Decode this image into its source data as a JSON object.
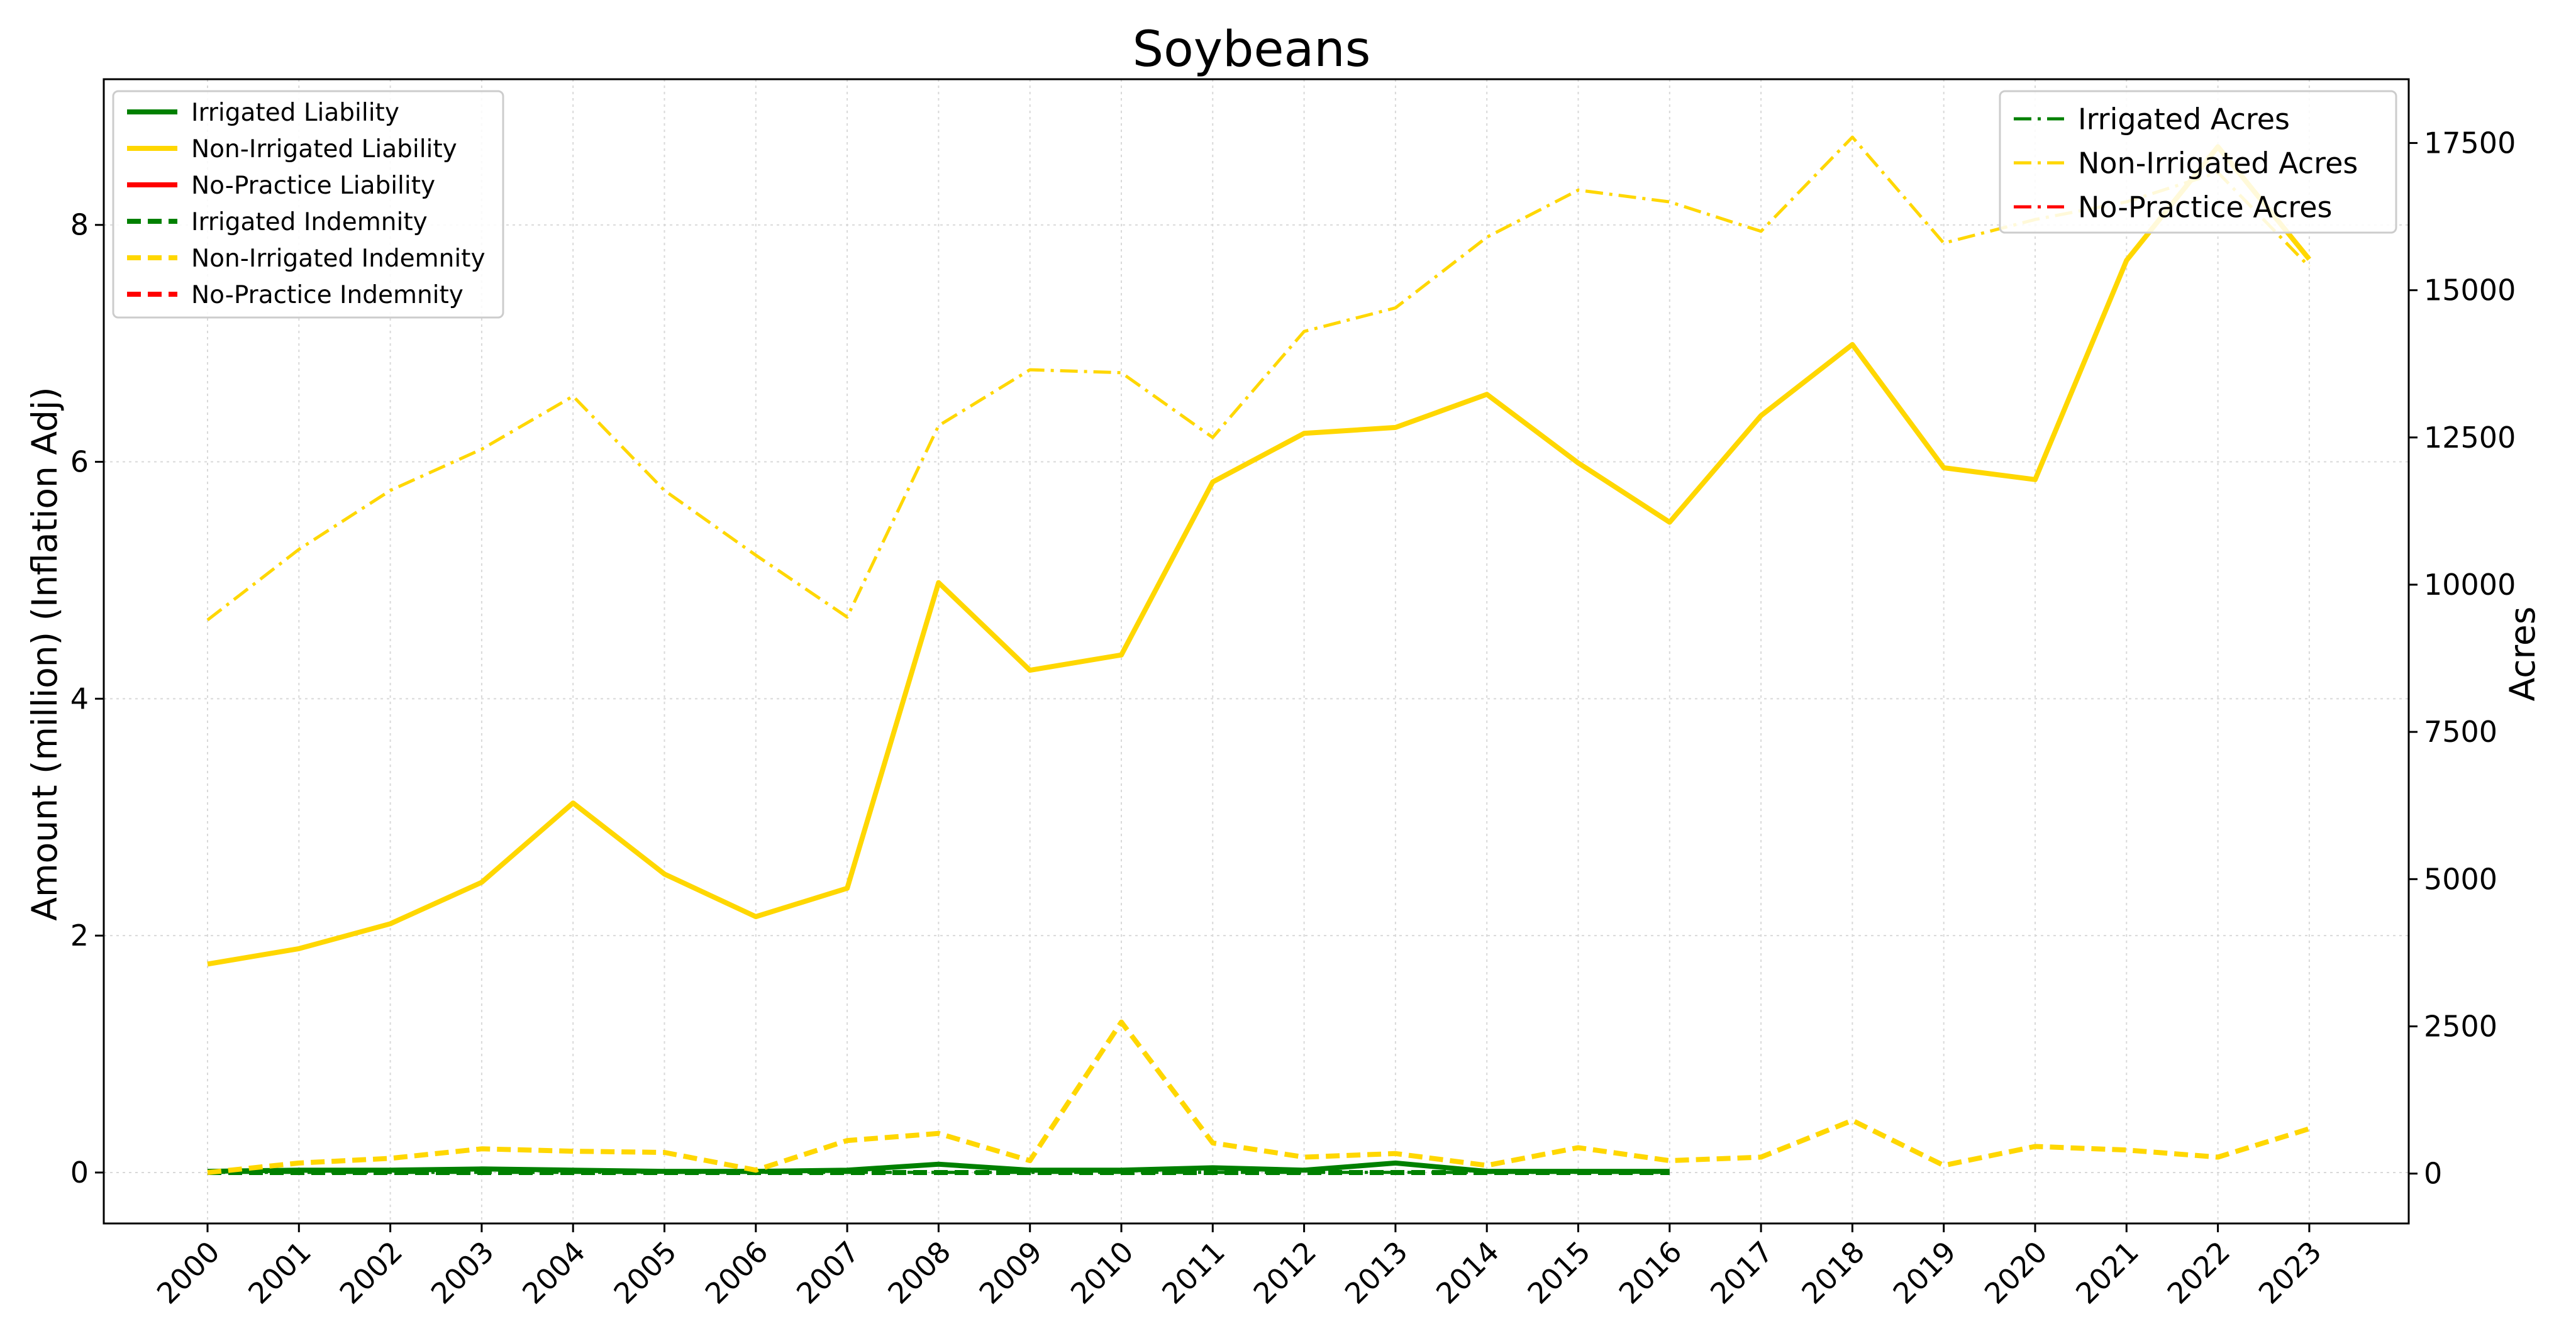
{
  "chart_data": {
    "type": "line",
    "title": "Soybeans",
    "ylabel_left": "Amount (million) (Inflation Adj)",
    "ylabel_right": "Acres",
    "x": [
      2000,
      2001,
      2002,
      2003,
      2004,
      2005,
      2006,
      2007,
      2008,
      2009,
      2010,
      2011,
      2012,
      2013,
      2014,
      2015,
      2016,
      2017,
      2018,
      2019,
      2020,
      2021,
      2022,
      2023
    ],
    "x_tick_labels": [
      "2000",
      "2001",
      "2002",
      "2003",
      "2004",
      "2005",
      "2006",
      "2007",
      "2008",
      "2009",
      "2010",
      "2011",
      "2012",
      "2013",
      "2014",
      "2015",
      "2016",
      "2017",
      "2018",
      "2019",
      "2020",
      "2021",
      "2022",
      "2023"
    ],
    "ylim_left": [
      -0.43,
      9.23
    ],
    "ylim_right": [
      -847,
      18583
    ],
    "yticks_left": [
      0,
      2,
      4,
      6,
      8
    ],
    "yticks_right": [
      0,
      2500,
      5000,
      7500,
      10000,
      12500,
      15000,
      17500
    ],
    "grid": true,
    "legend_left": {
      "placement": "upper left",
      "entries": [
        "Irrigated Liability",
        "Non-Irrigated Liability",
        "No-Practice Liability",
        "Irrigated Indemnity",
        "Non-Irrigated Indemnity",
        "No-Practice Indemnity"
      ]
    },
    "legend_right": {
      "placement": "upper right",
      "entries": [
        "Irrigated Acres",
        "Non-Irrigated Acres",
        "No-Practice Acres"
      ]
    },
    "colors": {
      "irrigated": "#008000",
      "non_irrigated": "#FFD700",
      "no_practice": "#FF0000"
    },
    "series_left": [
      {
        "name": "Irrigated Liability",
        "color": "#008000",
        "style": "solid",
        "x": [
          2000,
          2001,
          2002,
          2003,
          2004,
          2005,
          2006,
          2007,
          2008,
          2009,
          2010,
          2011,
          2012,
          2013,
          2014,
          2015,
          2016
        ],
        "values": [
          0.01,
          0.02,
          0.02,
          0.03,
          0.02,
          0.01,
          0.01,
          0.02,
          0.07,
          0.02,
          0.02,
          0.04,
          0.02,
          0.08,
          0.01,
          0.01,
          0.01
        ]
      },
      {
        "name": "Non-Irrigated Liability",
        "color": "#FFD700",
        "style": "solid",
        "x": [
          2000,
          2001,
          2002,
          2003,
          2004,
          2005,
          2006,
          2007,
          2008,
          2009,
          2010,
          2011,
          2012,
          2013,
          2014,
          2015,
          2016,
          2017,
          2018,
          2019,
          2020,
          2021,
          2022,
          2023
        ],
        "values": [
          1.76,
          1.89,
          2.1,
          2.45,
          3.12,
          2.52,
          2.16,
          2.4,
          4.98,
          4.24,
          4.37,
          5.83,
          6.24,
          6.29,
          6.57,
          5.99,
          5.49,
          6.39,
          6.99,
          5.95,
          5.85,
          7.7,
          8.66,
          7.71
        ]
      },
      {
        "name": "Irrigated Indemnity",
        "color": "#008000",
        "style": "dashed",
        "x": [
          2000,
          2001,
          2002,
          2003,
          2004,
          2005,
          2006,
          2007,
          2008,
          2009,
          2010,
          2011,
          2012,
          2013,
          2014,
          2015,
          2016
        ],
        "values": [
          0.0,
          0.0,
          0.0,
          0.0,
          0.0,
          0.0,
          0.0,
          0.0,
          0.0,
          0.0,
          0.0,
          0.0,
          0.0,
          0.0,
          0.0,
          0.0,
          0.0
        ]
      },
      {
        "name": "Non-Irrigated Indemnity",
        "color": "#FFD700",
        "style": "dashed",
        "x": [
          2000,
          2001,
          2002,
          2003,
          2004,
          2005,
          2006,
          2007,
          2008,
          2009,
          2010,
          2011,
          2012,
          2013,
          2014,
          2015,
          2016,
          2017,
          2018,
          2019,
          2020,
          2021,
          2022,
          2023
        ],
        "values": [
          0.0,
          0.08,
          0.12,
          0.2,
          0.18,
          0.17,
          0.02,
          0.27,
          0.33,
          0.1,
          1.27,
          0.25,
          0.13,
          0.16,
          0.06,
          0.21,
          0.1,
          0.13,
          0.44,
          0.06,
          0.22,
          0.19,
          0.13,
          0.37
        ]
      }
    ],
    "series_right": [
      {
        "name": "Irrigated Acres",
        "color": "#008000",
        "style": "dashdot",
        "x": [
          2000,
          2001,
          2002,
          2003,
          2004,
          2005,
          2006,
          2007,
          2008,
          2009,
          2010,
          2011,
          2012,
          2013,
          2014,
          2015,
          2016
        ],
        "values": [
          20,
          20,
          20,
          20,
          20,
          20,
          20,
          20,
          20,
          20,
          20,
          20,
          20,
          20,
          20,
          20,
          20
        ]
      },
      {
        "name": "Non-Irrigated Acres",
        "color": "#FFD700",
        "style": "dashdot",
        "x": [
          2000,
          2001,
          2002,
          2003,
          2004,
          2005,
          2006,
          2007,
          2008,
          2009,
          2010,
          2011,
          2012,
          2013,
          2014,
          2015,
          2016,
          2017,
          2018,
          2019,
          2020,
          2021,
          2022,
          2023
        ],
        "values": [
          9400,
          10600,
          11600,
          12300,
          13200,
          11600,
          10500,
          9450,
          12700,
          13650,
          13600,
          12500,
          14300,
          14700,
          15900,
          16700,
          16500,
          16000,
          17600,
          15800,
          16200,
          16500,
          17000,
          15400
        ]
      }
    ]
  }
}
